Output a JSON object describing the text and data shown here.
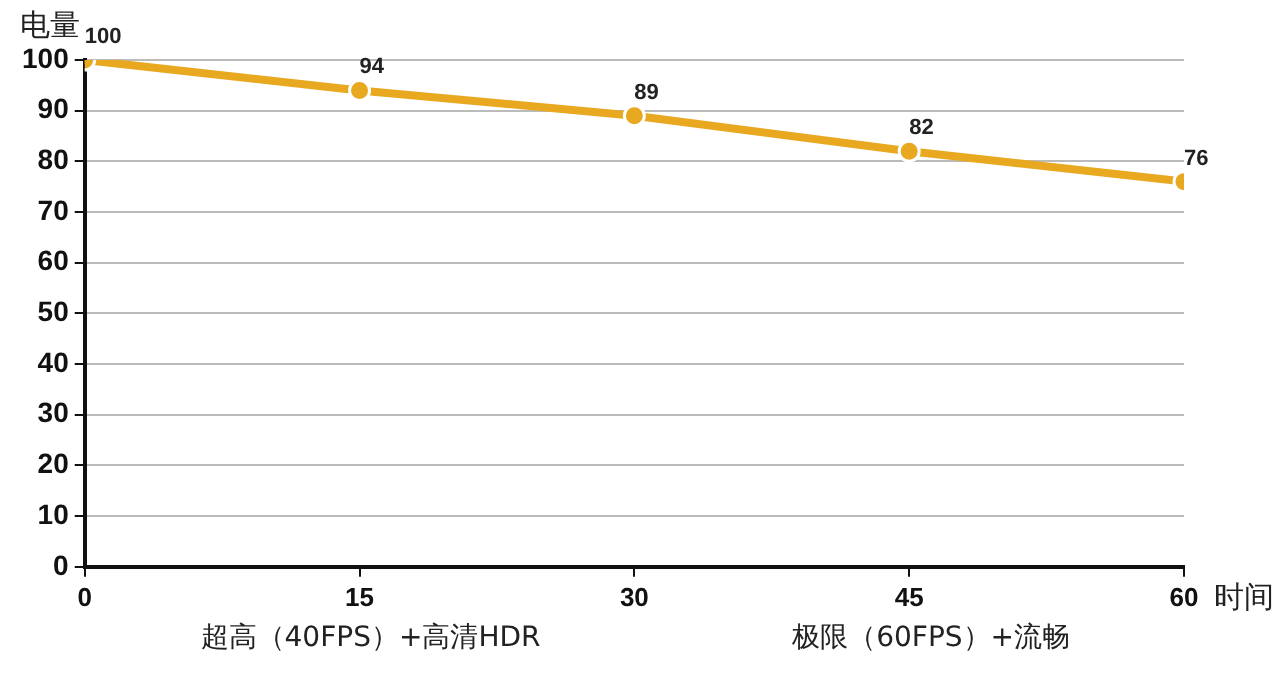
{
  "chart_data": {
    "type": "line",
    "xlabel": "时间",
    "ylabel": "电量",
    "x": [
      0,
      15,
      30,
      45,
      60
    ],
    "series": [
      {
        "color": "#e8a820",
        "values": [
          100,
          94,
          89,
          82,
          76
        ]
      }
    ],
    "xlim": [
      0,
      60
    ],
    "xticks": [
      0,
      15,
      30,
      45,
      60
    ],
    "ylim": [
      0,
      100
    ],
    "yticks": [
      0,
      10,
      20,
      30,
      40,
      50,
      60,
      70,
      80,
      90,
      100
    ],
    "grid": "y",
    "legend": false,
    "marker": "circle",
    "line_style": "solid",
    "data_labels": true,
    "annotations": [
      "超高（40FPS）+高清HDR",
      "极限（60FPS）+流畅"
    ]
  }
}
